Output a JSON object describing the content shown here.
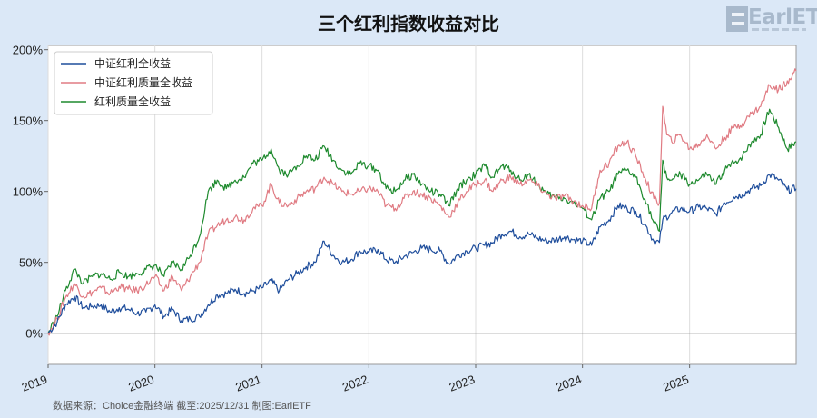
{
  "header": {
    "title": "三个红利指数收益对比",
    "logo": "EarlETF"
  },
  "footer": {
    "source": "数据来源：Choice金融终端 截至:2025/12/31 制图:EarlETF"
  },
  "chart_data": {
    "type": "line",
    "title": "三个红利指数收益对比",
    "xlabel": "",
    "ylabel": "",
    "x_range": [
      "2019-01-01",
      "2025-12-31"
    ],
    "x_ticks": [
      "2019",
      "2020",
      "2021",
      "2022",
      "2023",
      "2024",
      "2025"
    ],
    "y_ticks": [
      "0%",
      "50%",
      "100%",
      "150%",
      "200%"
    ],
    "ylim": [
      -22,
      203
    ],
    "y_unit": "%",
    "grid": "vertical",
    "legend_position": "top-left",
    "series": [
      {
        "name": "中证红利全收益",
        "color": "#1f4e9c",
        "points": [
          [
            "2019-01-01",
            0
          ],
          [
            "2019-02-01",
            8
          ],
          [
            "2019-03-01",
            20
          ],
          [
            "2019-04-01",
            26
          ],
          [
            "2019-05-01",
            18
          ],
          [
            "2019-06-01",
            19
          ],
          [
            "2019-07-01",
            20
          ],
          [
            "2019-08-01",
            15
          ],
          [
            "2019-09-01",
            18
          ],
          [
            "2019-10-01",
            17
          ],
          [
            "2019-11-01",
            14
          ],
          [
            "2019-12-01",
            15
          ],
          [
            "2020-01-01",
            20
          ],
          [
            "2020-02-01",
            12
          ],
          [
            "2020-03-01",
            17
          ],
          [
            "2020-04-01",
            9
          ],
          [
            "2020-05-01",
            10
          ],
          [
            "2020-06-01",
            12
          ],
          [
            "2020-07-01",
            20
          ],
          [
            "2020-08-01",
            27
          ],
          [
            "2020-09-01",
            28
          ],
          [
            "2020-10-01",
            31
          ],
          [
            "2020-11-01",
            28
          ],
          [
            "2020-12-01",
            30
          ],
          [
            "2021-01-01",
            32
          ],
          [
            "2021-02-01",
            37
          ],
          [
            "2021-03-01",
            30
          ],
          [
            "2021-04-01",
            38
          ],
          [
            "2021-05-01",
            42
          ],
          [
            "2021-06-01",
            47
          ],
          [
            "2021-07-01",
            50
          ],
          [
            "2021-08-01",
            65
          ],
          [
            "2021-09-01",
            55
          ],
          [
            "2021-10-01",
            50
          ],
          [
            "2021-11-01",
            52
          ],
          [
            "2021-12-01",
            58
          ],
          [
            "2022-01-01",
            57
          ],
          [
            "2022-02-01",
            59
          ],
          [
            "2022-03-01",
            52
          ],
          [
            "2022-04-01",
            50
          ],
          [
            "2022-05-01",
            54
          ],
          [
            "2022-06-01",
            57
          ],
          [
            "2022-07-01",
            60
          ],
          [
            "2022-08-01",
            59
          ],
          [
            "2022-09-01",
            58
          ],
          [
            "2022-10-01",
            49
          ],
          [
            "2022-11-01",
            55
          ],
          [
            "2022-12-01",
            58
          ],
          [
            "2023-01-01",
            60
          ],
          [
            "2023-02-01",
            62
          ],
          [
            "2023-03-01",
            64
          ],
          [
            "2023-04-01",
            70
          ],
          [
            "2023-05-01",
            72
          ],
          [
            "2023-06-01",
            68
          ],
          [
            "2023-07-01",
            70
          ],
          [
            "2023-08-01",
            67
          ],
          [
            "2023-09-01",
            65
          ],
          [
            "2023-10-01",
            66
          ],
          [
            "2023-11-01",
            68
          ],
          [
            "2023-12-01",
            66
          ],
          [
            "2024-01-01",
            65
          ],
          [
            "2024-02-01",
            62
          ],
          [
            "2024-03-01",
            75
          ],
          [
            "2024-04-01",
            80
          ],
          [
            "2024-05-01",
            90
          ],
          [
            "2024-06-01",
            88
          ],
          [
            "2024-07-01",
            86
          ],
          [
            "2024-08-01",
            77
          ],
          [
            "2024-09-01",
            65
          ],
          [
            "2024-09-20",
            64
          ],
          [
            "2024-10-01",
            80
          ],
          [
            "2024-11-01",
            85
          ],
          [
            "2024-12-01",
            88
          ],
          [
            "2025-01-01",
            86
          ],
          [
            "2025-02-01",
            89
          ],
          [
            "2025-03-01",
            88
          ],
          [
            "2025-04-01",
            84
          ],
          [
            "2025-05-01",
            92
          ],
          [
            "2025-06-01",
            96
          ],
          [
            "2025-07-01",
            98
          ],
          [
            "2025-08-01",
            102
          ],
          [
            "2025-09-01",
            104
          ],
          [
            "2025-10-01",
            112
          ],
          [
            "2025-11-01",
            108
          ],
          [
            "2025-12-01",
            101
          ],
          [
            "2025-12-31",
            102
          ]
        ]
      },
      {
        "name": "中证红利质量全收益",
        "color": "#e07b83",
        "points": [
          [
            "2019-01-01",
            0
          ],
          [
            "2019-02-01",
            10
          ],
          [
            "2019-03-01",
            25
          ],
          [
            "2019-04-01",
            35
          ],
          [
            "2019-05-01",
            26
          ],
          [
            "2019-06-01",
            29
          ],
          [
            "2019-07-01",
            32
          ],
          [
            "2019-08-01",
            28
          ],
          [
            "2019-09-01",
            33
          ],
          [
            "2019-10-01",
            31
          ],
          [
            "2019-11-01",
            30
          ],
          [
            "2019-12-01",
            34
          ],
          [
            "2020-01-01",
            40
          ],
          [
            "2020-02-01",
            30
          ],
          [
            "2020-03-01",
            40
          ],
          [
            "2020-04-01",
            30
          ],
          [
            "2020-05-01",
            40
          ],
          [
            "2020-06-01",
            50
          ],
          [
            "2020-07-01",
            70
          ],
          [
            "2020-08-01",
            76
          ],
          [
            "2020-09-01",
            80
          ],
          [
            "2020-10-01",
            82
          ],
          [
            "2020-11-01",
            80
          ],
          [
            "2020-12-01",
            88
          ],
          [
            "2021-01-01",
            90
          ],
          [
            "2021-02-01",
            105
          ],
          [
            "2021-03-01",
            92
          ],
          [
            "2021-04-01",
            90
          ],
          [
            "2021-05-01",
            95
          ],
          [
            "2021-06-01",
            100
          ],
          [
            "2021-07-01",
            102
          ],
          [
            "2021-08-01",
            110
          ],
          [
            "2021-09-01",
            105
          ],
          [
            "2021-10-01",
            100
          ],
          [
            "2021-11-01",
            98
          ],
          [
            "2021-12-01",
            100
          ],
          [
            "2022-01-01",
            102
          ],
          [
            "2022-02-01",
            100
          ],
          [
            "2022-03-01",
            90
          ],
          [
            "2022-04-01",
            88
          ],
          [
            "2022-05-01",
            95
          ],
          [
            "2022-06-01",
            100
          ],
          [
            "2022-07-01",
            98
          ],
          [
            "2022-08-01",
            95
          ],
          [
            "2022-09-01",
            90
          ],
          [
            "2022-10-01",
            82
          ],
          [
            "2022-11-01",
            92
          ],
          [
            "2022-12-01",
            100
          ],
          [
            "2023-01-01",
            105
          ],
          [
            "2023-02-01",
            108
          ],
          [
            "2023-03-01",
            100
          ],
          [
            "2023-04-01",
            108
          ],
          [
            "2023-05-01",
            110
          ],
          [
            "2023-06-01",
            105
          ],
          [
            "2023-07-01",
            108
          ],
          [
            "2023-08-01",
            104
          ],
          [
            "2023-09-01",
            98
          ],
          [
            "2023-10-01",
            95
          ],
          [
            "2023-11-01",
            97
          ],
          [
            "2023-12-01",
            93
          ],
          [
            "2024-01-01",
            90
          ],
          [
            "2024-02-01",
            88
          ],
          [
            "2024-03-01",
            115
          ],
          [
            "2024-04-01",
            120
          ],
          [
            "2024-05-01",
            132
          ],
          [
            "2024-06-01",
            135
          ],
          [
            "2024-07-01",
            125
          ],
          [
            "2024-08-01",
            110
          ],
          [
            "2024-09-01",
            95
          ],
          [
            "2024-09-20",
            92
          ],
          [
            "2024-10-01",
            160
          ],
          [
            "2024-10-15",
            140
          ],
          [
            "2024-11-01",
            135
          ],
          [
            "2024-12-01",
            140
          ],
          [
            "2025-01-01",
            130
          ],
          [
            "2025-02-01",
            133
          ],
          [
            "2025-03-01",
            140
          ],
          [
            "2025-04-01",
            130
          ],
          [
            "2025-05-01",
            138
          ],
          [
            "2025-06-01",
            145
          ],
          [
            "2025-07-01",
            148
          ],
          [
            "2025-08-01",
            155
          ],
          [
            "2025-09-01",
            160
          ],
          [
            "2025-10-01",
            175
          ],
          [
            "2025-11-01",
            172
          ],
          [
            "2025-12-01",
            178
          ],
          [
            "2025-12-31",
            185
          ]
        ]
      },
      {
        "name": "红利质量全收益",
        "color": "#1e8a2e",
        "points": [
          [
            "2019-01-01",
            0
          ],
          [
            "2019-02-01",
            12
          ],
          [
            "2019-03-01",
            30
          ],
          [
            "2019-04-01",
            45
          ],
          [
            "2019-05-01",
            35
          ],
          [
            "2019-06-01",
            40
          ],
          [
            "2019-07-01",
            42
          ],
          [
            "2019-08-01",
            38
          ],
          [
            "2019-09-01",
            43
          ],
          [
            "2019-10-01",
            40
          ],
          [
            "2019-11-01",
            42
          ],
          [
            "2019-12-01",
            45
          ],
          [
            "2020-01-01",
            48
          ],
          [
            "2020-02-01",
            40
          ],
          [
            "2020-03-01",
            50
          ],
          [
            "2020-04-01",
            45
          ],
          [
            "2020-05-01",
            55
          ],
          [
            "2020-06-01",
            68
          ],
          [
            "2020-07-01",
            100
          ],
          [
            "2020-08-01",
            108
          ],
          [
            "2020-09-01",
            102
          ],
          [
            "2020-10-01",
            108
          ],
          [
            "2020-11-01",
            110
          ],
          [
            "2020-12-01",
            120
          ],
          [
            "2021-01-01",
            122
          ],
          [
            "2021-02-01",
            130
          ],
          [
            "2021-03-01",
            115
          ],
          [
            "2021-04-01",
            112
          ],
          [
            "2021-05-01",
            118
          ],
          [
            "2021-06-01",
            125
          ],
          [
            "2021-07-01",
            122
          ],
          [
            "2021-08-01",
            132
          ],
          [
            "2021-09-01",
            122
          ],
          [
            "2021-10-01",
            115
          ],
          [
            "2021-11-01",
            112
          ],
          [
            "2021-12-01",
            120
          ],
          [
            "2022-01-01",
            118
          ],
          [
            "2022-02-01",
            115
          ],
          [
            "2022-03-01",
            102
          ],
          [
            "2022-04-01",
            100
          ],
          [
            "2022-05-01",
            108
          ],
          [
            "2022-06-01",
            112
          ],
          [
            "2022-07-01",
            105
          ],
          [
            "2022-08-01",
            100
          ],
          [
            "2022-09-01",
            98
          ],
          [
            "2022-10-01",
            90
          ],
          [
            "2022-11-01",
            102
          ],
          [
            "2022-12-01",
            108
          ],
          [
            "2023-01-01",
            112
          ],
          [
            "2023-02-01",
            118
          ],
          [
            "2023-03-01",
            110
          ],
          [
            "2023-04-01",
            118
          ],
          [
            "2023-05-01",
            115
          ],
          [
            "2023-06-01",
            108
          ],
          [
            "2023-07-01",
            112
          ],
          [
            "2023-08-01",
            105
          ],
          [
            "2023-09-01",
            98
          ],
          [
            "2023-10-01",
            96
          ],
          [
            "2023-11-01",
            95
          ],
          [
            "2023-12-01",
            92
          ],
          [
            "2024-01-01",
            88
          ],
          [
            "2024-02-01",
            80
          ],
          [
            "2024-03-01",
            95
          ],
          [
            "2024-04-01",
            100
          ],
          [
            "2024-05-01",
            112
          ],
          [
            "2024-06-01",
            115
          ],
          [
            "2024-07-01",
            110
          ],
          [
            "2024-08-01",
            95
          ],
          [
            "2024-09-01",
            78
          ],
          [
            "2024-09-20",
            72
          ],
          [
            "2024-10-01",
            122
          ],
          [
            "2024-10-15",
            110
          ],
          [
            "2024-11-01",
            108
          ],
          [
            "2024-12-01",
            112
          ],
          [
            "2025-01-01",
            105
          ],
          [
            "2025-02-01",
            108
          ],
          [
            "2025-03-01",
            112
          ],
          [
            "2025-04-01",
            105
          ],
          [
            "2025-05-01",
            115
          ],
          [
            "2025-06-01",
            120
          ],
          [
            "2025-07-01",
            125
          ],
          [
            "2025-08-01",
            135
          ],
          [
            "2025-09-01",
            140
          ],
          [
            "2025-10-01",
            158
          ],
          [
            "2025-11-01",
            145
          ],
          [
            "2025-12-01",
            130
          ],
          [
            "2025-12-31",
            135
          ]
        ]
      }
    ]
  }
}
